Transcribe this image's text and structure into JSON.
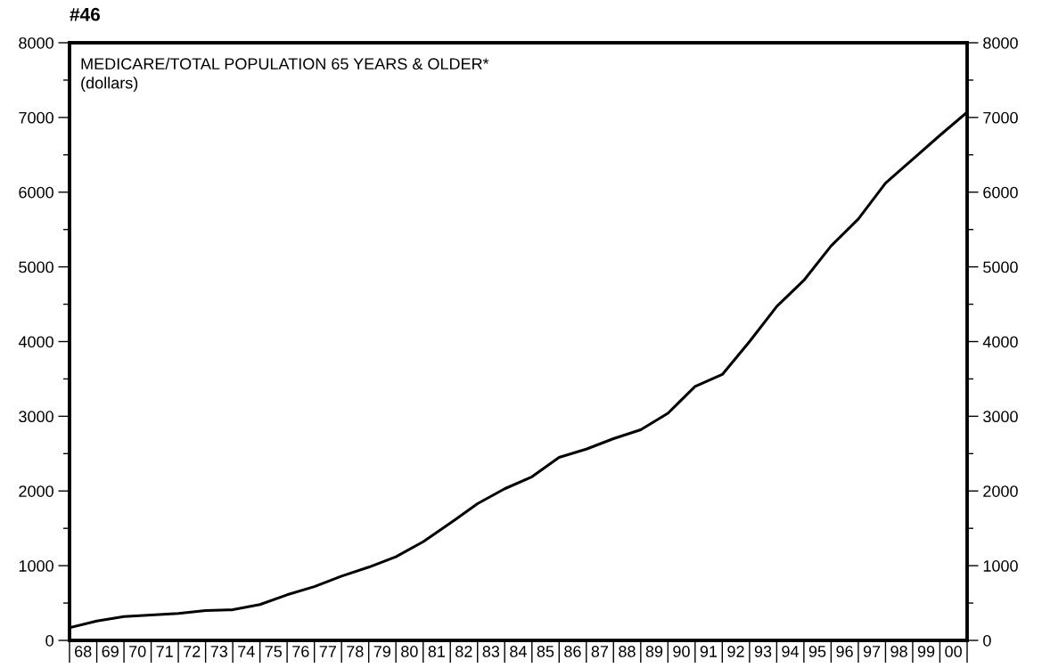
{
  "chart_data": {
    "type": "line",
    "title": "#46",
    "annotations": [
      "MEDICARE/TOTAL POPULATION 65 YEARS & OLDER*",
      "(dollars)"
    ],
    "x": [
      "1968",
      "1969",
      "1970",
      "1971",
      "1972",
      "1973",
      "1974",
      "1975",
      "1976",
      "1977",
      "1978",
      "1979",
      "1980",
      "1981",
      "1982",
      "1983",
      "1984",
      "1985",
      "1986",
      "1987",
      "1988",
      "1989",
      "1990",
      "1991",
      "1992",
      "1993",
      "1994",
      "1995",
      "1996",
      "1997",
      "1998",
      "1999",
      "2000",
      "2001"
    ],
    "series": [
      {
        "color": "#000000",
        "values": [
          170,
          260,
          320,
          340,
          360,
          400,
          410,
          480,
          610,
          720,
          860,
          980,
          1120,
          1320,
          1570,
          1830,
          2030,
          2190,
          2450,
          2560,
          2700,
          2820,
          3040,
          3400,
          3560,
          4000,
          4470,
          4820,
          5280,
          5640,
          6120,
          6440,
          6760,
          7070
        ]
      }
    ],
    "xlim": [
      "1968",
      "2001"
    ],
    "xticks": [
      {
        "value": "1968-07",
        "label": "68"
      },
      {
        "value": "1969-07",
        "label": "69"
      },
      {
        "value": "1970-07",
        "label": "70"
      },
      {
        "value": "1971-07",
        "label": "71"
      },
      {
        "value": "1972-07",
        "label": "72"
      },
      {
        "value": "1973-07",
        "label": "73"
      },
      {
        "value": "1974-07",
        "label": "74"
      },
      {
        "value": "1975-07",
        "label": "75"
      },
      {
        "value": "1976-07",
        "label": "76"
      },
      {
        "value": "1977-07",
        "label": "77"
      },
      {
        "value": "1978-07",
        "label": "78"
      },
      {
        "value": "1979-07",
        "label": "79"
      },
      {
        "value": "1980-07",
        "label": "80"
      },
      {
        "value": "1981-07",
        "label": "81"
      },
      {
        "value": "1982-07",
        "label": "82"
      },
      {
        "value": "1983-07",
        "label": "83"
      },
      {
        "value": "1984-07",
        "label": "84"
      },
      {
        "value": "1985-07",
        "label": "85"
      },
      {
        "value": "1986-07",
        "label": "86"
      },
      {
        "value": "1987-07",
        "label": "87"
      },
      {
        "value": "1988-07",
        "label": "88"
      },
      {
        "value": "1989-07",
        "label": "89"
      },
      {
        "value": "1990-07",
        "label": "90"
      },
      {
        "value": "1991-07",
        "label": "91"
      },
      {
        "value": "1992-07",
        "label": "92"
      },
      {
        "value": "1993-07",
        "label": "93"
      },
      {
        "value": "1994-07",
        "label": "94"
      },
      {
        "value": "1995-07",
        "label": "95"
      },
      {
        "value": "1996-07",
        "label": "96"
      },
      {
        "value": "1997-07",
        "label": "97"
      },
      {
        "value": "1998-07",
        "label": "98"
      },
      {
        "value": "1999-07",
        "label": "99"
      },
      {
        "value": "2000-07",
        "label": "00"
      }
    ],
    "ylim": [
      0,
      8000
    ],
    "yticks": [
      0,
      {
        "value": 500,
        "label": null
      },
      1000,
      {
        "value": 1500,
        "label": null
      },
      2000,
      {
        "value": 2500,
        "label": null
      },
      3000,
      {
        "value": 3500,
        "label": null
      },
      4000,
      {
        "value": 4500,
        "label": null
      },
      5000,
      {
        "value": 5500,
        "label": null
      },
      6000,
      {
        "value": 6500,
        "label": null
      },
      7000,
      {
        "value": 7500,
        "label": null
      },
      8000
    ],
    "y2lim": [
      0,
      8000
    ],
    "y2ticks": [
      0,
      {
        "value": 500,
        "label": null
      },
      1000,
      {
        "value": 1500,
        "label": null
      },
      2000,
      {
        "value": 2500,
        "label": null
      },
      3000,
      {
        "value": 3500,
        "label": null
      },
      4000,
      {
        "value": 4500,
        "label": null
      },
      5000,
      {
        "value": 5500,
        "label": null
      },
      6000,
      {
        "value": 6500,
        "label": null
      },
      7000,
      {
        "value": 7500,
        "label": null
      },
      8000
    ],
    "grid": false,
    "legend": false,
    "marker": "none",
    "line_style": "solid"
  }
}
